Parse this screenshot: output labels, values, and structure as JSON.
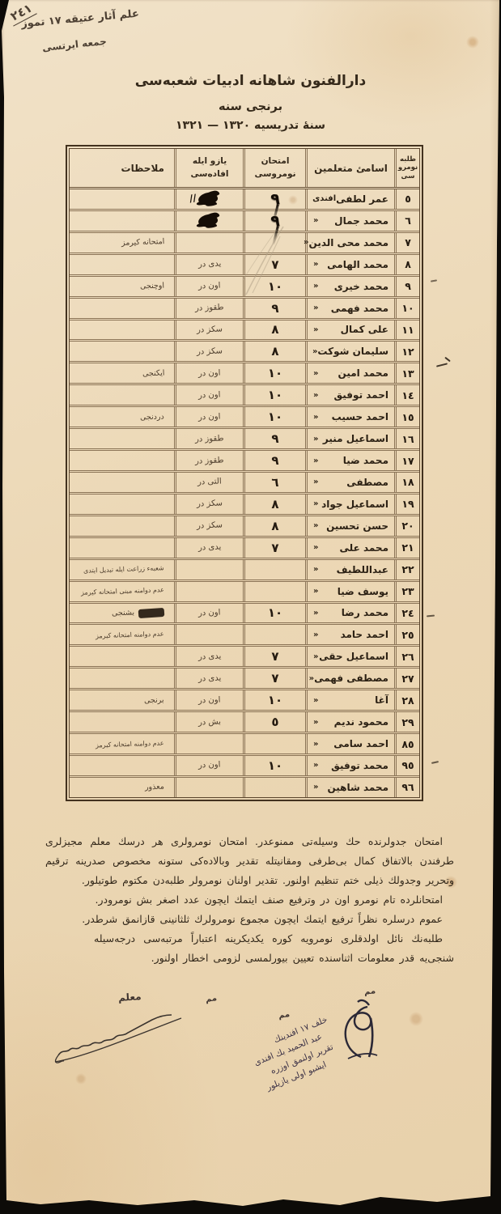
{
  "document": {
    "corner_number": "٢٤١",
    "archive_note_line1": "علم آثار عتيقه ١٧ تموز",
    "archive_note_line2": "جمعه ايرتسى",
    "title": "دارالفنون شاهانه ادبيات شعبه‌سى",
    "subtitle": "برنجى سنه",
    "academic_year": "سنهٔ تدريسيه ١٣٢٠ — ١٣٢١"
  },
  "table": {
    "headers": {
      "student_number": "طلبه\nنومرو\nسى",
      "student_names": "اسامئ متعلمين",
      "exam_number": "امتحان\nنومروسى",
      "written_expression": "يازو ايله\nافاده‌سى",
      "remarks": "ملاحظات"
    },
    "rows": [
      {
        "no": "٥",
        "name": "عمر لطفى",
        "ditto": "افندى",
        "exam": "٩",
        "exam_heavy": true,
        "written": "",
        "written_blot": true,
        "slashes": true,
        "remark": ""
      },
      {
        "no": "٦",
        "name": "محمد جمال",
        "ditto": "«",
        "exam": "٩",
        "exam_heavy": true,
        "written": "",
        "written_blot": true,
        "remark": ""
      },
      {
        "no": "٧",
        "name": "محمد محى الدين",
        "ditto": "«",
        "exam": "",
        "written": "",
        "remark": "امتحانه كيرمز"
      },
      {
        "no": "٨",
        "name": "محمد الهامى",
        "ditto": "«",
        "exam": "٧",
        "written": "يدى در",
        "remark": ""
      },
      {
        "no": "٩",
        "name": "محمد خيرى",
        "ditto": "«",
        "exam": "١٠",
        "written": "اون در",
        "remark": "اوچنجى"
      },
      {
        "no": "١٠",
        "name": "محمد فهمى",
        "ditto": "«",
        "exam": "٩",
        "written": "طقوز در",
        "remark": ""
      },
      {
        "no": "١١",
        "name": "على كمال",
        "ditto": "«",
        "exam": "٨",
        "written": "سكز در",
        "remark": ""
      },
      {
        "no": "١٢",
        "name": "سليمان شوكت",
        "ditto": "«",
        "exam": "٨",
        "written": "سكز در",
        "remark": ""
      },
      {
        "no": "١٣",
        "name": "محمد امين",
        "ditto": "«",
        "exam": "١٠",
        "written": "اون در",
        "remark": "ايكنجى"
      },
      {
        "no": "١٤",
        "name": "احمد توفيق",
        "ditto": "«",
        "exam": "١٠",
        "written": "اون در",
        "remark": ""
      },
      {
        "no": "١٥",
        "name": "احمد حسيب",
        "ditto": "«",
        "exam": "١٠",
        "written": "اون در",
        "remark": "دردنجى"
      },
      {
        "no": "١٦",
        "name": "اسماعيل منير",
        "ditto": "«",
        "exam": "٩",
        "written": "طقوز در",
        "remark": ""
      },
      {
        "no": "١٧",
        "name": "محمد ضيا",
        "ditto": "«",
        "exam": "٩",
        "written": "طقوز در",
        "remark": ""
      },
      {
        "no": "١٨",
        "name": "مصطفى",
        "ditto": "«",
        "exam": "٦",
        "written": "التى در",
        "remark": ""
      },
      {
        "no": "١٩",
        "name": "اسماعيل جواد",
        "ditto": "«",
        "exam": "٨",
        "written": "سكز در",
        "remark": ""
      },
      {
        "no": "٢٠",
        "name": "حسن تحسين",
        "ditto": "«",
        "exam": "٨",
        "written": "سكز در",
        "remark": ""
      },
      {
        "no": "٢١",
        "name": "محمد على",
        "ditto": "«",
        "exam": "٧",
        "written": "يدى در",
        "remark": ""
      },
      {
        "no": "٢٢",
        "name": "عبداللطيف",
        "ditto": "«",
        "exam": "",
        "written": "",
        "remark": "شعبه‌ء زراعت ايله تبديل ايتدى"
      },
      {
        "no": "٢٣",
        "name": "يوسف ضيا",
        "ditto": "«",
        "exam": "",
        "written": "",
        "remark": "عدم دوامنه مبنى امتحانه كيرمز"
      },
      {
        "no": "٢٤",
        "name": "محمد رضا",
        "ditto": "«",
        "exam": "١٠",
        "written": "اون در",
        "remark": "بشنجى",
        "struck": true
      },
      {
        "no": "٢٥",
        "name": "احمد حامد",
        "ditto": "«",
        "exam": "",
        "written": "",
        "remark": "عدم دوامنه امتحانه كيرمز"
      },
      {
        "no": "٢٦",
        "name": "اسماعيل حقى",
        "ditto": "«",
        "exam": "٧",
        "written": "يدى در",
        "remark": ""
      },
      {
        "no": "٢٧",
        "name": "مصطفى فهمى",
        "ditto": "«",
        "exam": "٧",
        "written": "يدى در",
        "remark": ""
      },
      {
        "no": "٢٨",
        "name": "آغا",
        "ditto": "«",
        "exam": "١٠",
        "written": "اون در",
        "remark": "برنجى"
      },
      {
        "no": "٢٩",
        "name": "محمود نديم",
        "ditto": "«",
        "exam": "٥",
        "written": "بش در",
        "remark": ""
      },
      {
        "no": "٨٥",
        "name": "احمد سامى",
        "ditto": "«",
        "exam": "",
        "written": "",
        "remark": "عدم دوامنه امتحانه كيرمز"
      },
      {
        "no": "٩٥",
        "name": "محمد توفيق",
        "ditto": "«",
        "exam": "١٠",
        "written": "اون در",
        "remark": ""
      },
      {
        "no": "٩٦",
        "name": "محمد شاهين",
        "ditto": "«",
        "exam": "",
        "written": "",
        "remark": "معذور"
      }
    ]
  },
  "notes": {
    "paragraphs": [
      "امتحان جدولرنده حك وسيله‌تى ممنوعدر. امتحان نومرولرى هر درسك معلم مجيزلرى طرفندن بالاتفاق كمال بى‌طرفى ومقانيتله تقدير وبالاده‌كى ستونه مخصوص صدرينه ترقيم وتحرير وجدولك ذيلى ختم تنظيم اولنور. تقدير اولنان نومرولر طلبه‌دن مكتوم طوتيلور.",
      "امتحانلرده تام نومرو اون در وترفيع صنف ايتمك ايچون عدد اصغر بش نومرودر.",
      "عموم درسلره نظراً ترفيع ايتمك ايچون مجموع نومرولرك ثلثانينى قازانمق شرطدر.",
      "طلبه‌نك نائل اولدقلرى نومرويه كوره يكديكرينه اعتباراً مرتبه‌سى درجه‌سيله شنجى‌يه قدر معلومات اثناسنده تعيين بيورلمسى لزومى اخطار اولنور."
    ]
  },
  "signatures": {
    "teacher_label": "معلم",
    "mark_right": "مم",
    "mark_mid": "مم",
    "mark_left": "مم",
    "note_lines": [
      "خلف ١٧ افندينك",
      "عبد الحميد بك افندى",
      "تقرير اولنمق اوزره",
      "ايشبو اولى يازيلور"
    ]
  },
  "colors": {
    "paper": "#ecd8b6",
    "print_ink": "#35291a",
    "handwriting_ink": "#4a3a2b",
    "table_line": "#6a543a",
    "blot_ink": "#150d06",
    "paraph_ink": "#2b2836",
    "backdrop": "#0d0b08"
  }
}
